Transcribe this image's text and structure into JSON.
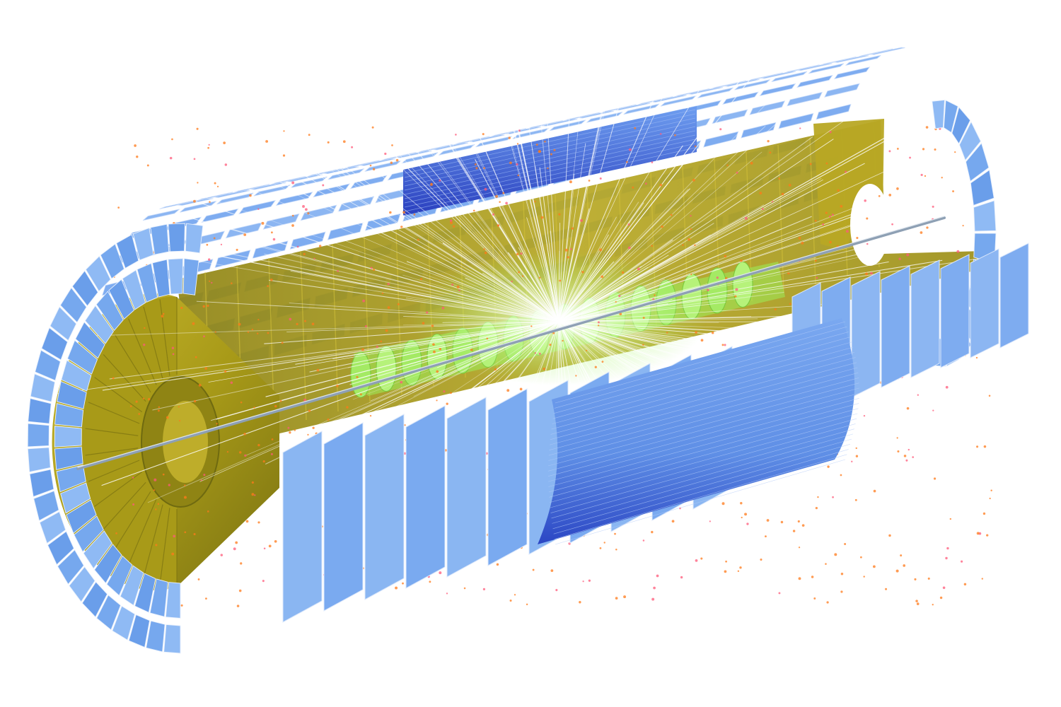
{
  "scene": {
    "description_caption": "",
    "colors": {
      "background": "#ffffff",
      "outer_layer": "#74a6ec",
      "outer_layer_dark": "#4a7ad6",
      "outer_layer_light": "#a8c8f8",
      "barrel_strips": "#5f8fe6",
      "barrel_strips_dark": "#2b46c4",
      "calorimeter": "#a89a18",
      "calorimeter_dark": "#6f6a10",
      "calorimeter_light": "#c9b830",
      "inner_tracker": "#9aee5a",
      "inner_tracker_light": "#c8ff8a",
      "tracks": "#ffffff",
      "hits_orange": "#ff7a1a",
      "hits_pink": "#ff5a7a",
      "beam_pipe": "#8ea0b4"
    },
    "icons": [
      "detector-cutaway-render"
    ]
  }
}
